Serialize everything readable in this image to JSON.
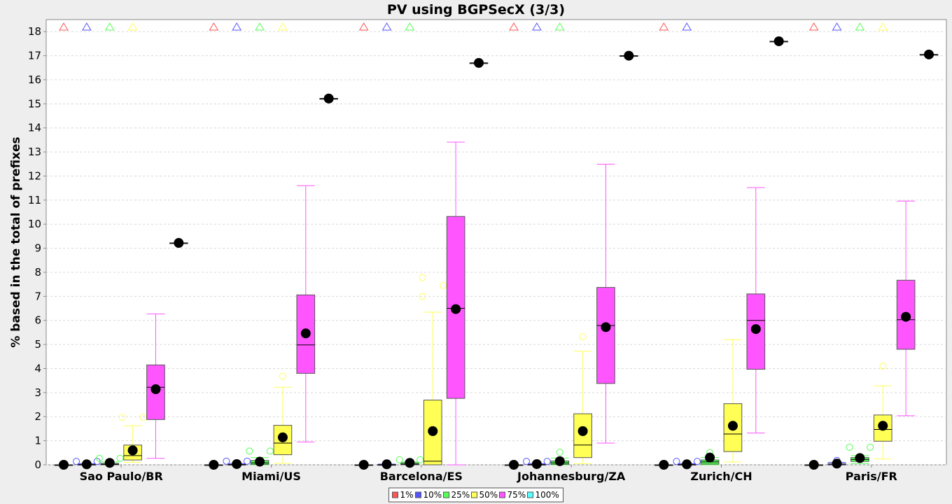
{
  "chart_data": {
    "type": "box",
    "title": "PV using BGPSecX  (3/3)",
    "xlabel": "",
    "ylabel": "% based in the total of prefixes",
    "ylim": [
      0,
      18.5
    ],
    "yticks": [
      0,
      1,
      2,
      3,
      4,
      5,
      6,
      7,
      8,
      9,
      10,
      11,
      12,
      13,
      14,
      15,
      16,
      17,
      18
    ],
    "grid": true,
    "legend_position": "bottom",
    "categories": [
      "Sao Paulo/BR",
      "Miami/US",
      "Barcelona/ES",
      "Johannesburg/ZA",
      "Zurich/CH",
      "Paris/FR"
    ],
    "series": [
      {
        "name": "1%",
        "color": "#ff5555",
        "boxes": [
          {
            "min": 0,
            "q1": 0,
            "median": 0,
            "q3": 0,
            "max": 0,
            "mean": 0,
            "outliers": [],
            "far_out_above": true
          },
          {
            "min": 0,
            "q1": 0,
            "median": 0,
            "q3": 0,
            "max": 0,
            "mean": 0,
            "outliers": [],
            "far_out_above": true
          },
          {
            "min": 0,
            "q1": 0,
            "median": 0,
            "q3": 0,
            "max": 0,
            "mean": 0,
            "outliers": [],
            "far_out_above": true
          },
          {
            "min": 0,
            "q1": 0,
            "median": 0,
            "q3": 0,
            "max": 0,
            "mean": 0,
            "outliers": [],
            "far_out_above": true
          },
          {
            "min": 0,
            "q1": 0,
            "median": 0,
            "q3": 0,
            "max": 0,
            "mean": 0,
            "outliers": [],
            "far_out_above": true
          },
          {
            "min": 0,
            "q1": 0,
            "median": 0,
            "q3": 0,
            "max": 0,
            "mean": 0,
            "outliers": [],
            "far_out_above": true
          }
        ]
      },
      {
        "name": "10%",
        "color": "#5555ff",
        "boxes": [
          {
            "min": 0,
            "q1": 0,
            "median": 0,
            "q3": 0.02,
            "max": 0.05,
            "mean": 0.02,
            "outliers": [
              0.14,
              0.14
            ],
            "far_out_above": true
          },
          {
            "min": 0,
            "q1": 0,
            "median": 0,
            "q3": 0.02,
            "max": 0.05,
            "mean": 0.03,
            "outliers": [
              0.15,
              0.15
            ],
            "far_out_above": true
          },
          {
            "min": 0,
            "q1": 0,
            "median": 0,
            "q3": 0.01,
            "max": 0.03,
            "mean": 0.02,
            "outliers": [],
            "far_out_above": true
          },
          {
            "min": 0,
            "q1": 0,
            "median": 0,
            "q3": 0.02,
            "max": 0.05,
            "mean": 0.03,
            "outliers": [
              0.14,
              0.14
            ],
            "far_out_above": true
          },
          {
            "min": 0,
            "q1": 0,
            "median": 0,
            "q3": 0.02,
            "max": 0.05,
            "mean": 0.02,
            "outliers": [
              0.14,
              0.14
            ],
            "far_out_above": true
          },
          {
            "min": 0,
            "q1": 0,
            "median": 0,
            "q3": 0.05,
            "max": 0.1,
            "mean": 0.05,
            "outliers": [
              0.18
            ],
            "far_out_above": true
          }
        ]
      },
      {
        "name": "25%",
        "color": "#55ff55",
        "boxes": [
          {
            "min": 0,
            "q1": 0,
            "median": 0.02,
            "q3": 0.06,
            "max": 0.12,
            "mean": 0.08,
            "outliers": [
              0.27,
              0.27
            ],
            "far_out_above": true
          },
          {
            "min": 0,
            "q1": 0.02,
            "median": 0.08,
            "q3": 0.18,
            "max": 0.3,
            "mean": 0.13,
            "outliers": [
              0.57,
              0.57
            ],
            "far_out_above": true
          },
          {
            "min": 0,
            "q1": 0,
            "median": 0.03,
            "q3": 0.08,
            "max": 0.12,
            "mean": 0.08,
            "outliers": [
              0.21,
              0.21
            ],
            "far_out_above": true
          },
          {
            "min": 0,
            "q1": 0.02,
            "median": 0.08,
            "q3": 0.16,
            "max": 0.28,
            "mean": 0.15,
            "outliers": [
              0.52
            ],
            "far_out_above": true
          },
          {
            "min": 0,
            "q1": 0.03,
            "median": 0.12,
            "q3": 0.2,
            "max": 0.3,
            "mean": 0.3,
            "outliers": [
              0.5
            ],
            "far_out_above": false
          },
          {
            "min": 0.05,
            "q1": 0.14,
            "median": 0.22,
            "q3": 0.3,
            "max": 0.38,
            "mean": 0.28,
            "outliers": [
              0.73,
              0.73
            ],
            "far_out_above": true
          }
        ]
      },
      {
        "name": "50%",
        "color": "#ffff55",
        "boxes": [
          {
            "min": 0.1,
            "q1": 0.2,
            "median": 0.38,
            "q3": 0.82,
            "max": 1.62,
            "mean": 0.6,
            "outliers": [
              1.97,
              1.97
            ],
            "far_out_above": true
          },
          {
            "min": 0.06,
            "q1": 0.42,
            "median": 0.9,
            "q3": 1.64,
            "max": 3.22,
            "mean": 1.14,
            "outliers": [
              3.68
            ],
            "far_out_above": true
          },
          {
            "min": 0,
            "q1": 0,
            "median": 0.15,
            "q3": 2.69,
            "max": 6.34,
            "mean": 1.4,
            "outliers": [
              6.99,
              7.45,
              7.78
            ],
            "far_out_above": false
          },
          {
            "min": 0.05,
            "q1": 0.3,
            "median": 0.82,
            "q3": 2.12,
            "max": 4.72,
            "mean": 1.4,
            "outliers": [
              5.32
            ],
            "far_out_above": false
          },
          {
            "min": 0.12,
            "q1": 0.55,
            "median": 1.28,
            "q3": 2.54,
            "max": 5.2,
            "mean": 1.62,
            "outliers": [],
            "far_out_above": false
          },
          {
            "min": 0.24,
            "q1": 0.98,
            "median": 1.47,
            "q3": 2.07,
            "max": 3.28,
            "mean": 1.62,
            "outliers": [
              4.1
            ],
            "far_out_above": true
          }
        ]
      },
      {
        "name": "75%",
        "color": "#ff55ff",
        "boxes": [
          {
            "min": 0.27,
            "q1": 1.88,
            "median": 3.22,
            "q3": 4.15,
            "max": 6.27,
            "mean": 3.14,
            "outliers": [],
            "far_out_above": false
          },
          {
            "min": 0.95,
            "q1": 3.8,
            "median": 4.98,
            "q3": 7.06,
            "max": 11.6,
            "mean": 5.46,
            "outliers": [],
            "far_out_above": false
          },
          {
            "min": 0,
            "q1": 2.76,
            "median": 6.5,
            "q3": 10.32,
            "max": 13.41,
            "mean": 6.47,
            "outliers": [],
            "far_out_above": false
          },
          {
            "min": 0.9,
            "q1": 3.38,
            "median": 5.79,
            "q3": 7.37,
            "max": 12.49,
            "mean": 5.72,
            "outliers": [],
            "far_out_above": false
          },
          {
            "min": 1.32,
            "q1": 3.97,
            "median": 6.0,
            "q3": 7.1,
            "max": 11.52,
            "mean": 5.64,
            "outliers": [],
            "far_out_above": false
          },
          {
            "min": 2.04,
            "q1": 4.8,
            "median": 6.03,
            "q3": 7.67,
            "max": 10.96,
            "mean": 6.15,
            "outliers": [],
            "far_out_above": false
          }
        ]
      },
      {
        "name": "100%",
        "color": "#55ffff",
        "boxes": [
          {
            "min": 9.22,
            "q1": 9.22,
            "median": 9.22,
            "q3": 9.22,
            "max": 9.22,
            "mean": 9.22,
            "outliers": [],
            "far_out_above": false
          },
          {
            "min": 15.22,
            "q1": 15.22,
            "median": 15.22,
            "q3": 15.22,
            "max": 15.22,
            "mean": 15.22,
            "outliers": [],
            "far_out_above": false
          },
          {
            "min": 16.7,
            "q1": 16.7,
            "median": 16.7,
            "q3": 16.7,
            "max": 16.7,
            "mean": 16.7,
            "outliers": [],
            "far_out_above": false
          },
          {
            "min": 17.0,
            "q1": 17.0,
            "median": 17.0,
            "q3": 17.0,
            "max": 17.0,
            "mean": 17.0,
            "outliers": [],
            "far_out_above": false
          },
          {
            "min": 17.6,
            "q1": 17.6,
            "median": 17.6,
            "q3": 17.6,
            "max": 17.6,
            "mean": 17.6,
            "outliers": [],
            "far_out_above": false
          },
          {
            "min": 17.05,
            "q1": 17.05,
            "median": 17.05,
            "q3": 17.05,
            "max": 17.05,
            "mean": 17.05,
            "outliers": [],
            "far_out_above": false
          }
        ]
      }
    ]
  }
}
